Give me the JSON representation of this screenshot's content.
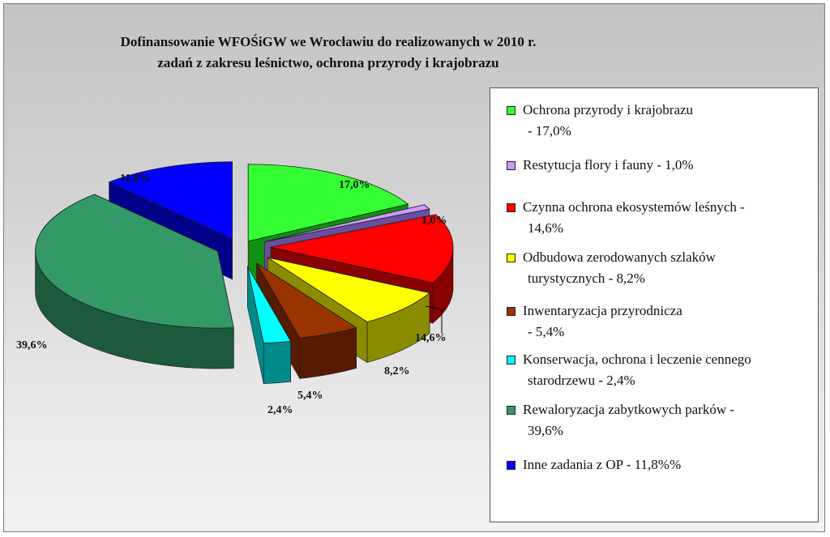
{
  "chart_data": {
    "type": "pie",
    "title": "Dofinansowanie WFOŚiGW we Wrocławiu do realizowanych w 2010 r. zadań z zakresu leśnictwo, ochrona przyrody i krajobrazu",
    "title_lines": [
      "Dofinansowanie WFOŚiGW we Wrocławiu do realizowanych w 2010 r.",
      "zadań z zakresu leśnictwo, ochrona przyrody i krajobrazu"
    ],
    "style": "3d-exploded",
    "legend_position": "right",
    "slices": [
      {
        "legend": [
          "Ochrona przyrody i krajobrazu",
          "- 17,0%"
        ],
        "value": 17.0,
        "label": "17,0%",
        "color": "#33ff33",
        "side": "#109010"
      },
      {
        "legend": [
          "Restytucja flory i fauny - 1,0%"
        ],
        "value": 1.0,
        "label": "1,0%",
        "color": "#cc99ff",
        "side": "#6a4fa0"
      },
      {
        "legend": [
          "Czynna ochrona ekosystemów leśnych -",
          "14,6%"
        ],
        "value": 14.6,
        "label": "14,6%",
        "color": "#ff0000",
        "side": "#880000"
      },
      {
        "legend": [
          "Odbudowa zerodowanych szlaków",
          "turystycznych - 8,2%"
        ],
        "value": 8.2,
        "label": "8,2%",
        "color": "#ffff00",
        "side": "#8b8b00"
      },
      {
        "legend": [
          "Inwentaryzacja przyrodnicza",
          "- 5,4%"
        ],
        "value": 5.4,
        "label": "5,4%",
        "color": "#993300",
        "side": "#551a00"
      },
      {
        "legend": [
          "Konserwacja, ochrona i leczenie cennego",
          "starodrzewu - 2,4%"
        ],
        "value": 2.4,
        "label": "2,4%",
        "color": "#00ffff",
        "side": "#008b8b"
      },
      {
        "legend": [
          "Rewaloryzacja zabytkowych parków -",
          "39,6%"
        ],
        "value": 39.6,
        "label": "39,6%",
        "color": "#339966",
        "side": "#1c5a3b"
      },
      {
        "legend": [
          "Inne zadania z OP - 11,8%%"
        ],
        "value": 11.8,
        "label": "11,8%",
        "color": "#0000ff",
        "side": "#00008b"
      }
    ]
  }
}
